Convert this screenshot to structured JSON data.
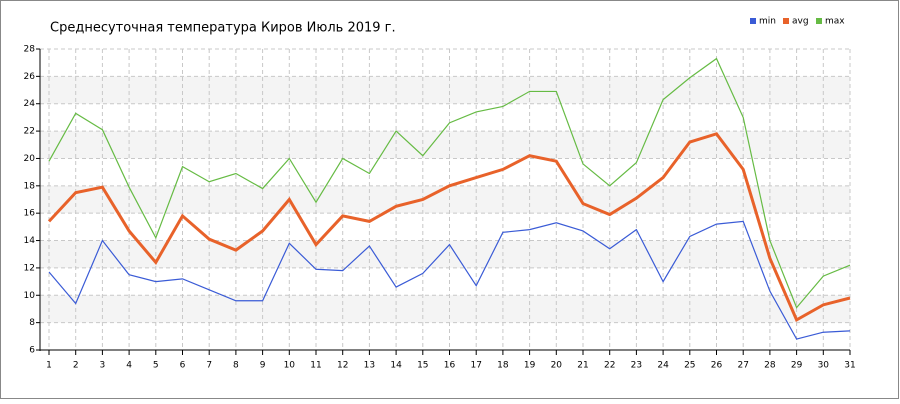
{
  "chart_data": {
    "type": "line",
    "title": "Среднесуточная температура Киров  Июль 2019 г.",
    "x": [
      1,
      2,
      3,
      4,
      5,
      6,
      7,
      8,
      9,
      10,
      11,
      12,
      13,
      14,
      15,
      16,
      17,
      18,
      19,
      20,
      21,
      22,
      23,
      24,
      25,
      26,
      27,
      28,
      29,
      30,
      31
    ],
    "series": [
      {
        "name": "min",
        "color": "#3a5bd6",
        "values": [
          11.7,
          9.4,
          14.0,
          11.5,
          11.0,
          11.2,
          10.4,
          9.6,
          9.6,
          13.8,
          11.9,
          11.8,
          13.6,
          10.6,
          11.6,
          13.7,
          10.7,
          14.6,
          14.8,
          15.3,
          14.7,
          13.4,
          14.8,
          11.0,
          14.3,
          15.2,
          15.4,
          10.3,
          6.8,
          7.3,
          7.4
        ]
      },
      {
        "name": "avg",
        "color": "#e8622a",
        "values": [
          15.4,
          17.5,
          17.9,
          14.7,
          12.4,
          15.8,
          14.1,
          13.3,
          14.7,
          17.0,
          13.7,
          15.8,
          15.4,
          16.5,
          17.0,
          18.0,
          18.6,
          19.2,
          20.2,
          19.8,
          16.7,
          15.9,
          17.1,
          18.6,
          21.2,
          21.8,
          19.2,
          12.7,
          8.2,
          9.3,
          9.8
        ]
      },
      {
        "name": "max",
        "color": "#66bb44",
        "values": [
          19.8,
          23.3,
          22.1,
          17.9,
          14.2,
          19.4,
          18.3,
          18.9,
          17.8,
          20.0,
          16.8,
          20.0,
          18.9,
          22.0,
          20.2,
          22.6,
          23.4,
          23.8,
          24.9,
          24.9,
          19.6,
          18.0,
          19.7,
          24.3,
          25.9,
          27.3,
          23.0,
          14.0,
          9.1,
          11.4,
          12.2
        ]
      }
    ],
    "xlim": [
      1,
      31
    ],
    "xticks": [
      1,
      2,
      3,
      4,
      5,
      6,
      7,
      8,
      9,
      10,
      11,
      12,
      13,
      14,
      15,
      16,
      17,
      18,
      19,
      20,
      21,
      22,
      23,
      24,
      25,
      26,
      27,
      28,
      29,
      30,
      31
    ],
    "ylim": [
      6,
      28
    ],
    "yticks": [
      6,
      8,
      10,
      12,
      14,
      16,
      18,
      20,
      22,
      24,
      26,
      28
    ],
    "grid": true,
    "legend": "top-right"
  }
}
